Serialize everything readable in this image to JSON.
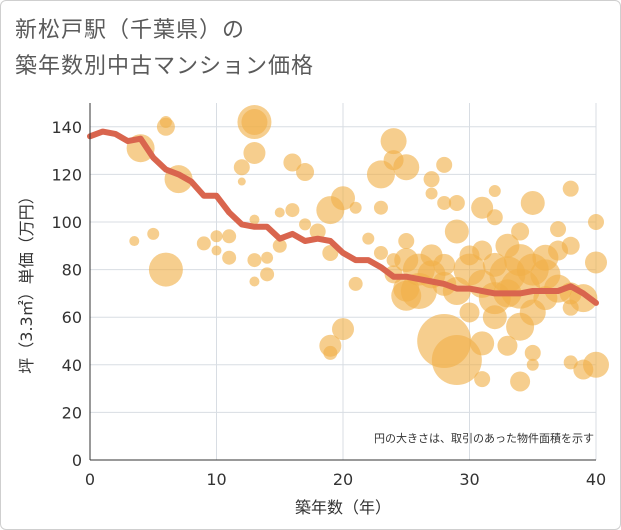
{
  "title_line1": "新松戸駅（千葉県）の",
  "title_line2": "築年数別中古マンション価格",
  "chart_data": {
    "type": "scatter",
    "xlabel": "築年数（年）",
    "ylabel": "坪（3.3㎡）単価（万円）",
    "xlim": [
      0,
      40
    ],
    "ylim": [
      0,
      150
    ],
    "xticks": [
      0,
      10,
      20,
      30,
      40
    ],
    "yticks": [
      0,
      20,
      40,
      60,
      80,
      100,
      120,
      140
    ],
    "note": "円の大きさは、取引のあった物件面積を示す",
    "bubble_color": "#f0b048",
    "line_color": "#d9654e",
    "grid": true,
    "trend_line": {
      "x": [
        0,
        1,
        2,
        3,
        4,
        5,
        6,
        7,
        8,
        9,
        10,
        11,
        12,
        13,
        14,
        15,
        16,
        17,
        18,
        19,
        20,
        21,
        22,
        23,
        24,
        25,
        26,
        27,
        28,
        29,
        30,
        31,
        32,
        33,
        34,
        35,
        36,
        37,
        38,
        39,
        40
      ],
      "y": [
        136,
        138,
        137,
        134,
        135,
        127,
        122,
        120,
        117,
        111,
        111,
        104,
        99,
        98,
        98,
        93,
        95,
        92,
        93,
        92,
        87,
        84,
        84,
        81,
        77,
        77,
        76,
        75,
        74,
        72,
        72,
        71,
        70,
        70,
        70,
        71,
        71,
        71,
        73,
        70,
        66
      ]
    },
    "points": [
      {
        "x": 4,
        "y": 131,
        "s": 14
      },
      {
        "x": 3.5,
        "y": 92,
        "s": 5
      },
      {
        "x": 5,
        "y": 95,
        "s": 6
      },
      {
        "x": 6,
        "y": 140,
        "s": 9
      },
      {
        "x": 6,
        "y": 142,
        "s": 6
      },
      {
        "x": 7,
        "y": 118,
        "s": 14
      },
      {
        "x": 6,
        "y": 80,
        "s": 17
      },
      {
        "x": 9,
        "y": 91,
        "s": 7
      },
      {
        "x": 10,
        "y": 88,
        "s": 5
      },
      {
        "x": 11,
        "y": 85,
        "s": 7
      },
      {
        "x": 10,
        "y": 94,
        "s": 6
      },
      {
        "x": 11,
        "y": 94,
        "s": 7
      },
      {
        "x": 12,
        "y": 123,
        "s": 8
      },
      {
        "x": 12,
        "y": 117,
        "s": 4
      },
      {
        "x": 13,
        "y": 142,
        "s": 17
      },
      {
        "x": 13,
        "y": 142,
        "s": 13
      },
      {
        "x": 13,
        "y": 129,
        "s": 11
      },
      {
        "x": 13,
        "y": 101,
        "s": 5
      },
      {
        "x": 13,
        "y": 84,
        "s": 7
      },
      {
        "x": 13,
        "y": 75,
        "s": 5
      },
      {
        "x": 14,
        "y": 78,
        "s": 7
      },
      {
        "x": 14,
        "y": 85,
        "s": 6
      },
      {
        "x": 15,
        "y": 104,
        "s": 5
      },
      {
        "x": 15,
        "y": 90,
        "s": 7
      },
      {
        "x": 16,
        "y": 125,
        "s": 9
      },
      {
        "x": 16,
        "y": 105,
        "s": 7
      },
      {
        "x": 17,
        "y": 121,
        "s": 9
      },
      {
        "x": 17,
        "y": 99,
        "s": 6
      },
      {
        "x": 18,
        "y": 96,
        "s": 8
      },
      {
        "x": 19,
        "y": 87,
        "s": 8
      },
      {
        "x": 19,
        "y": 105,
        "s": 14
      },
      {
        "x": 20,
        "y": 110,
        "s": 12
      },
      {
        "x": 21,
        "y": 106,
        "s": 6
      },
      {
        "x": 20,
        "y": 55,
        "s": 11
      },
      {
        "x": 19,
        "y": 48,
        "s": 11
      },
      {
        "x": 19,
        "y": 45,
        "s": 7
      },
      {
        "x": 21,
        "y": 74,
        "s": 7
      },
      {
        "x": 23,
        "y": 120,
        "s": 14
      },
      {
        "x": 24,
        "y": 134,
        "s": 13
      },
      {
        "x": 24,
        "y": 126,
        "s": 10
      },
      {
        "x": 25,
        "y": 123,
        "s": 13
      },
      {
        "x": 23,
        "y": 106,
        "s": 7
      },
      {
        "x": 22,
        "y": 93,
        "s": 6
      },
      {
        "x": 23,
        "y": 87,
        "s": 7
      },
      {
        "x": 24,
        "y": 84,
        "s": 7
      },
      {
        "x": 24,
        "y": 78,
        "s": 9
      },
      {
        "x": 25,
        "y": 92,
        "s": 8
      },
      {
        "x": 25,
        "y": 84,
        "s": 12
      },
      {
        "x": 25,
        "y": 72,
        "s": 13
      },
      {
        "x": 25,
        "y": 69,
        "s": 15
      },
      {
        "x": 26,
        "y": 80,
        "s": 16
      },
      {
        "x": 26,
        "y": 71,
        "s": 18
      },
      {
        "x": 27,
        "y": 78,
        "s": 14
      },
      {
        "x": 27,
        "y": 86,
        "s": 11
      },
      {
        "x": 27,
        "y": 118,
        "s": 8
      },
      {
        "x": 27,
        "y": 112,
        "s": 6
      },
      {
        "x": 28,
        "y": 124,
        "s": 8
      },
      {
        "x": 28,
        "y": 108,
        "s": 7
      },
      {
        "x": 29,
        "y": 108,
        "s": 8
      },
      {
        "x": 29,
        "y": 96,
        "s": 12
      },
      {
        "x": 28,
        "y": 82,
        "s": 11
      },
      {
        "x": 28,
        "y": 74,
        "s": 12
      },
      {
        "x": 28,
        "y": 50,
        "s": 27
      },
      {
        "x": 29,
        "y": 42,
        "s": 25
      },
      {
        "x": 29,
        "y": 71,
        "s": 14
      },
      {
        "x": 30,
        "y": 62,
        "s": 10
      },
      {
        "x": 30,
        "y": 80,
        "s": 16
      },
      {
        "x": 30,
        "y": 86,
        "s": 10
      },
      {
        "x": 31,
        "y": 106,
        "s": 11
      },
      {
        "x": 31,
        "y": 88,
        "s": 10
      },
      {
        "x": 31,
        "y": 74,
        "s": 14
      },
      {
        "x": 31,
        "y": 49,
        "s": 12
      },
      {
        "x": 31,
        "y": 34,
        "s": 8
      },
      {
        "x": 32,
        "y": 113,
        "s": 6
      },
      {
        "x": 32,
        "y": 102,
        "s": 8
      },
      {
        "x": 32,
        "y": 82,
        "s": 12
      },
      {
        "x": 32,
        "y": 68,
        "s": 16
      },
      {
        "x": 32,
        "y": 60,
        "s": 12
      },
      {
        "x": 33,
        "y": 90,
        "s": 12
      },
      {
        "x": 33,
        "y": 78,
        "s": 18
      },
      {
        "x": 33,
        "y": 70,
        "s": 14
      },
      {
        "x": 33,
        "y": 48,
        "s": 10
      },
      {
        "x": 34,
        "y": 96,
        "s": 9
      },
      {
        "x": 34,
        "y": 84,
        "s": 16
      },
      {
        "x": 34,
        "y": 72,
        "s": 20
      },
      {
        "x": 34,
        "y": 56,
        "s": 14
      },
      {
        "x": 34,
        "y": 33,
        "s": 10
      },
      {
        "x": 35,
        "y": 108,
        "s": 12
      },
      {
        "x": 35,
        "y": 80,
        "s": 16
      },
      {
        "x": 35,
        "y": 62,
        "s": 13
      },
      {
        "x": 35,
        "y": 45,
        "s": 8
      },
      {
        "x": 35,
        "y": 40,
        "s": 6
      },
      {
        "x": 36,
        "y": 85,
        "s": 13
      },
      {
        "x": 36,
        "y": 78,
        "s": 15
      },
      {
        "x": 36,
        "y": 68,
        "s": 12
      },
      {
        "x": 37,
        "y": 97,
        "s": 8
      },
      {
        "x": 37,
        "y": 88,
        "s": 10
      },
      {
        "x": 37,
        "y": 72,
        "s": 14
      },
      {
        "x": 38,
        "y": 114,
        "s": 8
      },
      {
        "x": 38,
        "y": 90,
        "s": 9
      },
      {
        "x": 38,
        "y": 70,
        "s": 11
      },
      {
        "x": 38,
        "y": 64,
        "s": 8
      },
      {
        "x": 39,
        "y": 68,
        "s": 14
      },
      {
        "x": 39,
        "y": 38,
        "s": 10
      },
      {
        "x": 38,
        "y": 41,
        "s": 7
      },
      {
        "x": 40,
        "y": 100,
        "s": 8
      },
      {
        "x": 40,
        "y": 83,
        "s": 11
      },
      {
        "x": 40,
        "y": 40,
        "s": 13
      }
    ]
  }
}
